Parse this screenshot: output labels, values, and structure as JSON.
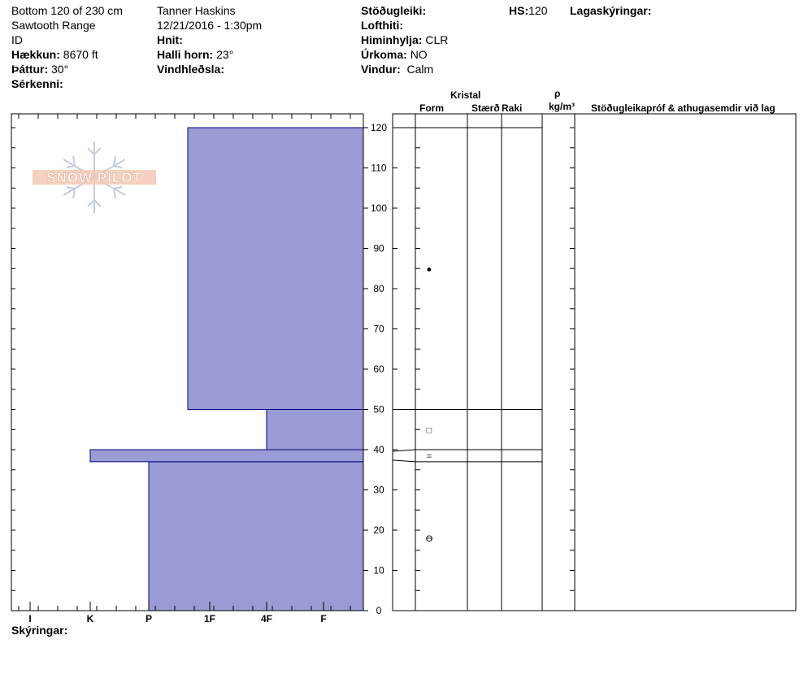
{
  "header": {
    "depth_range": "Bottom 120 of 230 cm",
    "range_name": "Sawtooth Range",
    "state": "ID",
    "elevation_label": "Hækkun:",
    "elevation_value": "8670 ft",
    "aspect_label": "Þáttur:",
    "aspect_value": "30°",
    "features_label": "Sérkenni:",
    "observer": "Tanner Haskins",
    "datetime": "12/21/2016 - 1:30pm",
    "coords_label": "Hnit:",
    "slope_label": "Halli horn:",
    "slope_value": "23°",
    "wind_loading_label": "Vindhleðsla:",
    "stability_label": "Stöðugleiki:",
    "air_temp_label": "Lofthiti:",
    "sky_label": "Himinhylja:",
    "sky_value": "CLR",
    "precip_label": "Úrkoma:",
    "precip_value": "NO",
    "wind_label": "Vindur:",
    "wind_value": "Calm",
    "hs_label": "HS:",
    "hs_value": "120",
    "layer_notes_label": "Lagaskýringar:"
  },
  "logo_text": "SNOW PILOT",
  "columns": {
    "crystal": "Kristal",
    "form": "Form",
    "size": "Stærð",
    "moisture": "Raki",
    "density_symbol": "ρ",
    "density_unit": "kg/m³",
    "comments": "Stöðugleikapróf & athugasemdir við lag"
  },
  "footer": {
    "notes_label": "Skýringar:"
  },
  "chart_data": {
    "type": "bar",
    "title": "",
    "y_axis": {
      "min": 0,
      "max": 120,
      "ticks": [
        0,
        10,
        20,
        30,
        40,
        50,
        60,
        70,
        80,
        90,
        100,
        110,
        120
      ]
    },
    "hardness_scale": [
      "I",
      "K",
      "P",
      "1F",
      "4F",
      "F"
    ],
    "layers": [
      {
        "bottom": 0,
        "top": 37,
        "hardness": "P"
      },
      {
        "bottom": 37,
        "top": 40,
        "hardness": "K"
      },
      {
        "bottom": 40,
        "top": 50,
        "hardness": "4F"
      },
      {
        "bottom": 50,
        "top": 120,
        "hardness": "1F-"
      }
    ],
    "layer_lines": [
      37,
      40,
      50,
      120
    ],
    "grain_symbols": [
      {
        "height": 85,
        "symbol": "●"
      },
      {
        "height": 45,
        "symbol": "□"
      },
      {
        "height": 38.5,
        "symbol": "="
      },
      {
        "height": 18,
        "symbol": "ϴ"
      }
    ],
    "colors": {
      "bar_fill": "#9b9bd6",
      "bar_stroke": "#00007a"
    }
  }
}
